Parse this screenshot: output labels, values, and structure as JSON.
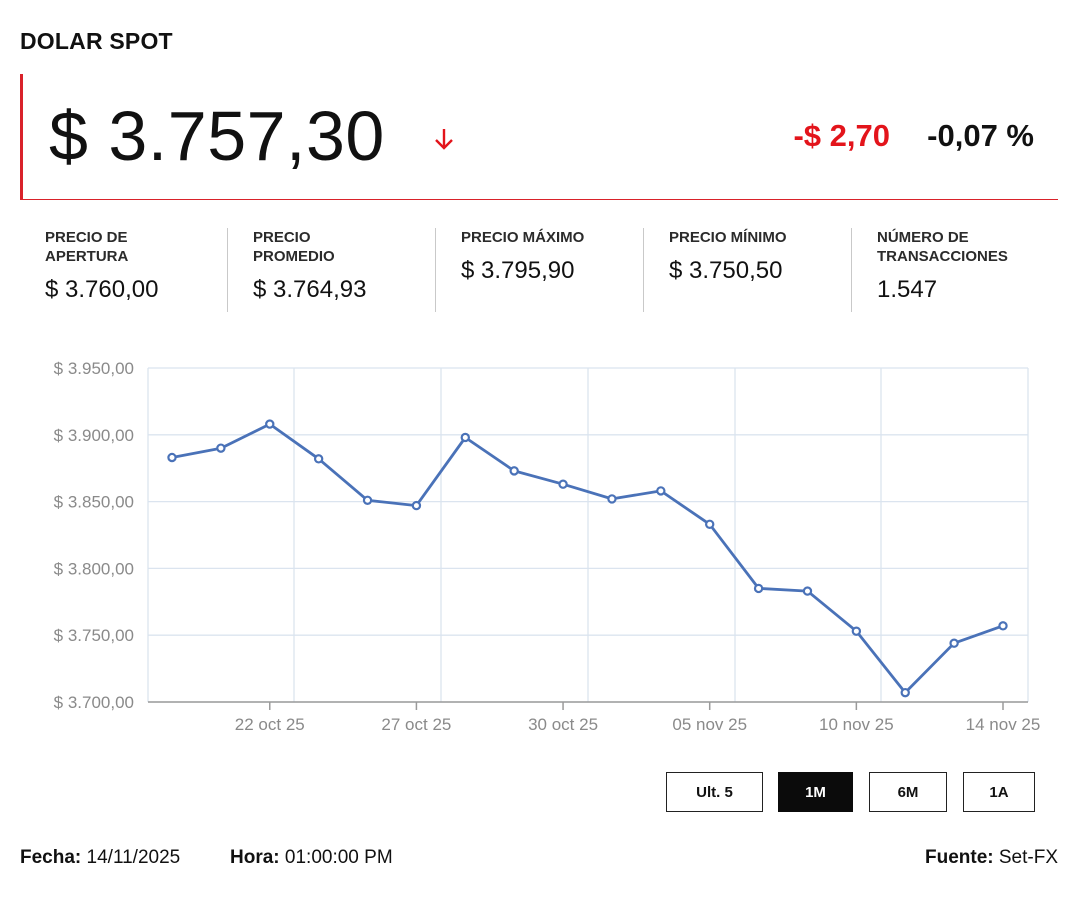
{
  "title": "DOLAR SPOT",
  "price": "$ 3.757,30",
  "direction_icon": "arrow-down-icon",
  "change": "-$ 2,70",
  "change_pct": "-0,07 %",
  "colors": {
    "accent": "#d9222a",
    "negative": "#e3141b",
    "line": "#4a72b8",
    "grid": "#dbe4ef"
  },
  "stats": [
    {
      "label": "PRECIO DE\nAPERTURA",
      "value": "$ 3.760,00"
    },
    {
      "label": "PRECIO\nPROMEDIO",
      "value": "$ 3.764,93"
    },
    {
      "label": "PRECIO MÁXIMO",
      "value": "$ 3.795,90"
    },
    {
      "label": "PRECIO MÍNIMO",
      "value": "$ 3.750,50"
    },
    {
      "label": "NÚMERO DE\nTRANSACCIONES",
      "value": "1.547"
    }
  ],
  "chart_data": {
    "type": "line",
    "x": [
      "2025-10-20",
      "2025-10-21",
      "2025-10-22",
      "2025-10-23",
      "2025-10-24",
      "2025-10-27",
      "2025-10-28",
      "2025-10-29",
      "2025-10-30",
      "2025-10-31",
      "2025-11-04",
      "2025-11-05",
      "2025-11-06",
      "2025-11-07",
      "2025-11-10",
      "2025-11-11",
      "2025-11-13",
      "2025-11-14"
    ],
    "y": [
      3883,
      3890,
      3908,
      3882,
      3851,
      3847,
      3898,
      3873,
      3863,
      3852,
      3858,
      3833,
      3785,
      3783,
      3753,
      3707,
      3744,
      3757
    ],
    "ylim": [
      3700,
      3950
    ],
    "yticks": [
      3950,
      3900,
      3850,
      3800,
      3750,
      3700
    ],
    "ytick_labels": [
      "$ 3.950,00",
      "$ 3.900,00",
      "$ 3.850,00",
      "$ 3.800,00",
      "$ 3.750,00",
      "$ 3.700,00"
    ],
    "xtick_labels": [
      "22 oct 25",
      "27 oct 25",
      "30 oct 25",
      "05 nov 25",
      "10 nov 25",
      "14 nov 25"
    ],
    "xtick_index": [
      2,
      5,
      8,
      11,
      14,
      17
    ],
    "grid": true,
    "markers": true
  },
  "ranges": [
    "Ult. 5",
    "1M",
    "6M",
    "1A"
  ],
  "active_range": "1M",
  "footer": {
    "fecha_label": "Fecha:",
    "fecha": "14/11/2025",
    "hora_label": "Hora:",
    "hora": "01:00:00 PM",
    "fuente_label": "Fuente:",
    "fuente": "Set-FX"
  }
}
